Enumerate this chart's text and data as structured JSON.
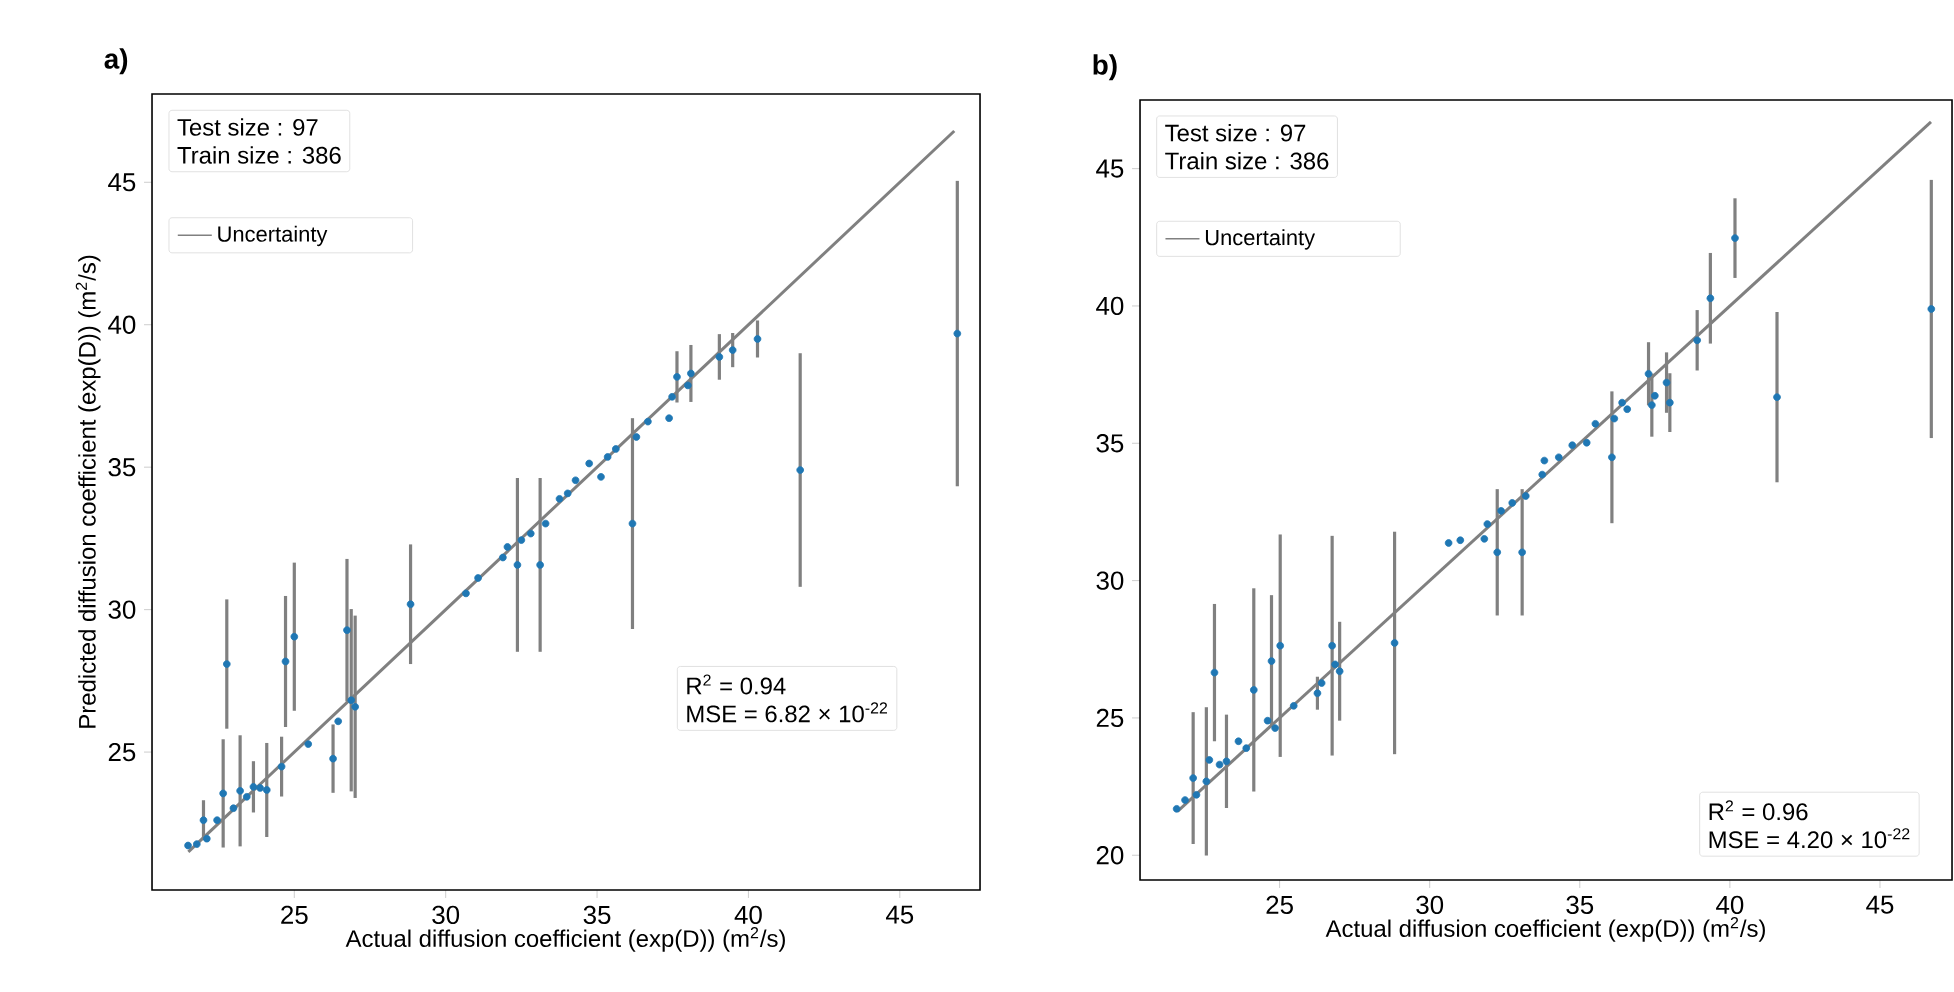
{
  "chart_data": [
    {
      "type": "scatter",
      "title": "a)",
      "xlabel": "Actual diffusion coefficient (exp(D)) (m$^{2}$/s)",
      "ylabel": "Predicted diffusion coefficient (exp(D)) (m$^{2}$/s)",
      "xlim": [
        20.3,
        47.65
      ],
      "ylim": [
        20.16,
        48.1
      ],
      "xticks": [
        25,
        30,
        35,
        40,
        45
      ],
      "yticks": [
        25,
        30,
        35,
        40,
        45
      ],
      "legend": "top left",
      "annotations": [
        "Test size : 97",
        "Train size : 386",
        "R$^{2}$ = 0.94",
        "MSE = 6.82 × 10$^{-22}$"
      ],
      "series": [
        {
          "name": "Uncertainty",
          "type": "line",
          "color": "#808080",
          "x": [
            21.5,
            46.8
          ],
          "values": [
            21.5,
            46.8
          ]
        },
        {
          "type": "scatter",
          "marker": "circle",
          "color": "#1f77b4",
          "x": [
            21.49,
            21.78,
            22.11,
            22.0,
            22.45,
            22.65,
            22.77,
            22.99,
            23.21,
            23.43,
            23.65,
            23.87,
            24.09,
            24.58,
            24.71,
            25.0,
            25.46,
            26.28,
            26.45,
            26.74,
            26.88,
            27.01,
            28.84,
            30.67,
            31.07,
            31.89,
            32.04,
            32.37,
            32.5,
            32.81,
            33.12,
            33.3,
            33.76,
            34.03,
            34.29,
            34.74,
            35.13,
            35.35,
            35.62,
            36.17,
            36.3,
            36.68,
            37.38,
            37.48,
            37.64,
            38.0,
            38.1,
            39.04,
            39.48,
            40.3,
            41.71,
            46.9
          ],
          "values": [
            21.72,
            21.77,
            21.96,
            22.61,
            22.61,
            23.55,
            28.09,
            23.03,
            23.64,
            23.43,
            23.78,
            23.74,
            23.67,
            24.49,
            28.18,
            29.05,
            25.28,
            24.77,
            26.08,
            29.28,
            26.82,
            26.59,
            30.19,
            30.57,
            31.11,
            31.83,
            32.2,
            31.57,
            32.44,
            32.67,
            31.57,
            33.02,
            33.89,
            34.08,
            34.54,
            35.13,
            34.66,
            35.36,
            35.64,
            33.02,
            36.06,
            36.6,
            36.72,
            37.47,
            38.17,
            37.87,
            38.29,
            38.87,
            39.11,
            39.5,
            34.9,
            39.69
          ],
          "errors": [
            null,
            null,
            null,
            0.7,
            null,
            1.9,
            2.27,
            null,
            1.95,
            null,
            0.9,
            null,
            1.65,
            1.05,
            2.3,
            2.6,
            null,
            1.2,
            null,
            2.5,
            3.2,
            3.2,
            2.1,
            null,
            null,
            null,
            null,
            3.05,
            null,
            null,
            3.05,
            null,
            null,
            null,
            null,
            null,
            null,
            null,
            null,
            3.7,
            null,
            null,
            null,
            null,
            0.9,
            null,
            1.0,
            0.8,
            0.6,
            0.65,
            4.1,
            5.36
          ]
        }
      ]
    },
    {
      "type": "scatter",
      "title": "b)",
      "xlabel": "Actual diffusion coefficient (exp(D)) (m$^{2}$/s)",
      "xlim": [
        20.35,
        47.4
      ],
      "ylim": [
        19.1,
        47.5
      ],
      "xticks": [
        25,
        30,
        35,
        40,
        45
      ],
      "yticks": [
        20,
        25,
        30,
        35,
        40,
        45
      ],
      "legend": "top left",
      "annotations": [
        "Test size : 97",
        "Train size : 386",
        "R$^{2}$ = 0.96",
        "MSE = 4.20 × 10$^{-22}$"
      ],
      "series": [
        {
          "name": "Uncertainty",
          "type": "line",
          "color": "#808080",
          "x": [
            21.6,
            46.7
          ],
          "values": [
            21.6,
            46.7
          ]
        },
        {
          "type": "scatter",
          "marker": "circle",
          "color": "#1f77b4",
          "x": [
            21.57,
            21.85,
            22.12,
            22.23,
            22.56,
            22.66,
            22.83,
            23.0,
            23.23,
            23.63,
            23.89,
            24.14,
            24.6,
            24.73,
            24.85,
            25.02,
            25.47,
            26.26,
            26.4,
            26.75,
            26.85,
            27.0,
            28.83,
            30.63,
            31.02,
            31.82,
            31.92,
            32.25,
            32.38,
            32.75,
            33.08,
            33.2,
            33.75,
            33.82,
            34.3,
            34.75,
            35.23,
            35.52,
            36.07,
            36.15,
            36.41,
            36.58,
            37.29,
            37.4,
            37.5,
            37.89,
            38.0,
            38.91,
            39.35,
            40.17,
            41.57,
            46.71
          ],
          "values": [
            21.69,
            22.01,
            22.81,
            22.2,
            22.69,
            23.47,
            26.65,
            23.3,
            23.42,
            24.15,
            23.9,
            26.02,
            24.9,
            27.07,
            24.63,
            27.63,
            25.44,
            25.9,
            26.27,
            27.63,
            26.95,
            26.7,
            27.73,
            31.37,
            31.47,
            31.52,
            32.06,
            31.03,
            32.54,
            32.83,
            31.03,
            33.08,
            33.86,
            34.37,
            34.49,
            34.93,
            35.02,
            35.71,
            34.49,
            35.9,
            36.48,
            36.24,
            37.53,
            36.39,
            36.73,
            37.21,
            36.48,
            38.75,
            40.28,
            42.47,
            36.68,
            39.89
          ],
          "errors": [
            null,
            null,
            2.4,
            null,
            2.7,
            null,
            2.5,
            null,
            1.7,
            null,
            null,
            3.7,
            null,
            2.4,
            null,
            4.05,
            null,
            0.6,
            null,
            4.0,
            null,
            1.8,
            4.05,
            null,
            null,
            null,
            null,
            2.3,
            null,
            null,
            2.3,
            null,
            null,
            null,
            null,
            null,
            null,
            null,
            2.4,
            null,
            null,
            null,
            1.15,
            1.15,
            null,
            1.1,
            1.07,
            1.1,
            1.65,
            1.45,
            3.1,
            4.7
          ]
        }
      ]
    }
  ]
}
